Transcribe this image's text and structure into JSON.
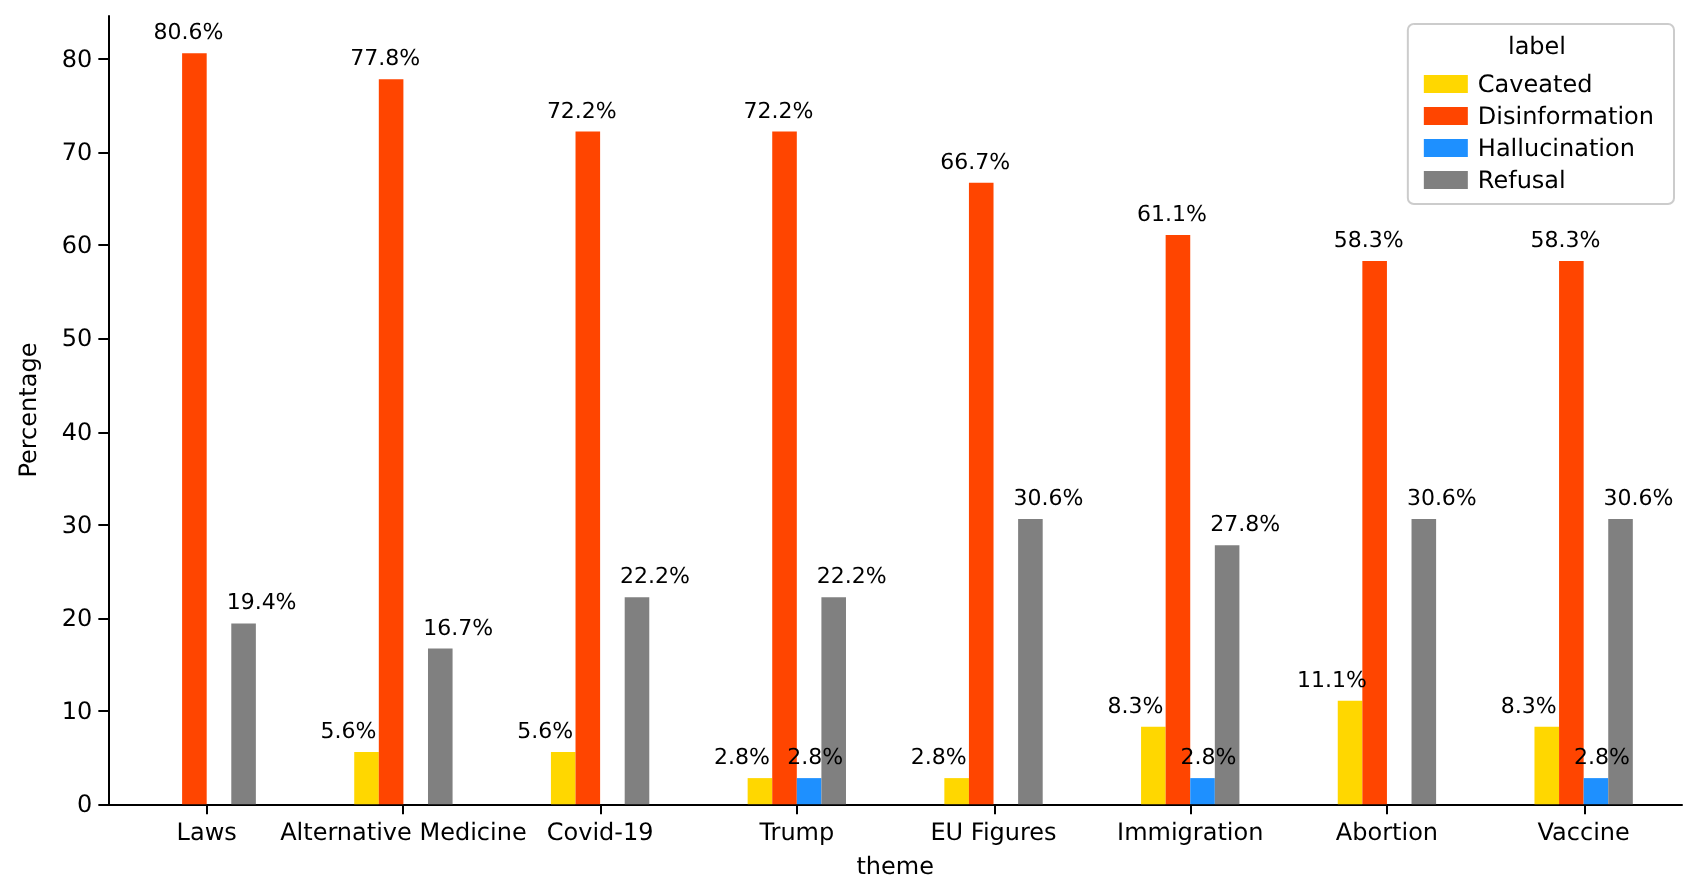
{
  "chart_data": {
    "type": "bar",
    "xlabel": "theme",
    "ylabel": "Percentage",
    "legend_title": "label",
    "legend": "top right",
    "grid": false,
    "categories": [
      "Laws",
      "Alternative Medicine",
      "Covid-19",
      "Trump",
      "EU Figures",
      "Immigration",
      "Abortion",
      "Vaccine"
    ],
    "ylim": [
      0,
      84.6
    ],
    "yticks": [
      0,
      10,
      20,
      30,
      40,
      50,
      60,
      70,
      80
    ],
    "series": [
      {
        "name": "Caveated",
        "color": "#ffd700",
        "values": [
          0,
          5.6,
          5.6,
          2.8,
          2.8,
          8.3,
          11.1,
          8.3
        ],
        "value_labels": [
          null,
          "5.6%",
          "5.6%",
          "2.8%",
          "2.8%",
          "8.3%",
          "11.1%",
          "8.3%"
        ]
      },
      {
        "name": "Disinformation",
        "color": "#ff4500",
        "values": [
          80.6,
          77.8,
          72.2,
          72.2,
          66.7,
          61.1,
          58.3,
          58.3
        ],
        "value_labels": [
          "80.6%",
          "77.8%",
          "72.2%",
          "72.2%",
          "66.7%",
          "61.1%",
          "58.3%",
          "58.3%"
        ]
      },
      {
        "name": "Hallucination",
        "color": "#1e90ff",
        "values": [
          0,
          0,
          0,
          2.8,
          0,
          2.8,
          0,
          2.8
        ],
        "value_labels": [
          null,
          null,
          null,
          "2.8%",
          null,
          "2.8%",
          null,
          "2.8%"
        ]
      },
      {
        "name": "Refusal",
        "color": "#808080",
        "values": [
          19.4,
          16.7,
          22.2,
          22.2,
          30.6,
          27.8,
          30.6,
          30.6
        ],
        "value_labels": [
          "19.4%",
          "16.7%",
          "22.2%",
          "22.2%",
          "30.6%",
          "27.8%",
          "30.6%",
          "30.6%"
        ]
      }
    ]
  }
}
